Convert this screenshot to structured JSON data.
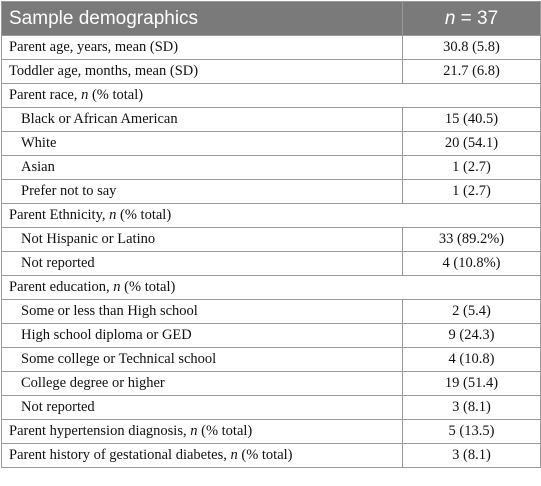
{
  "header": {
    "label": "Sample demographics",
    "n_symbol": "n",
    "n_rest": " = 37"
  },
  "rows": [
    {
      "kind": "stat",
      "label": "Parent age, years, mean (SD)",
      "value": "30.8 (5.8)"
    },
    {
      "kind": "stat",
      "label": "Toddler age, months, mean (SD)",
      "value": "21.7 (6.8)"
    },
    {
      "kind": "group",
      "pre": "Parent race, ",
      "n": "n",
      "post": " (% total)"
    },
    {
      "kind": "item",
      "label": "Black or African American",
      "value": "15 (40.5)"
    },
    {
      "kind": "item",
      "label": "White",
      "value": "20 (54.1)"
    },
    {
      "kind": "item",
      "label": "Asian",
      "value": "1 (2.7)"
    },
    {
      "kind": "item",
      "label": "Prefer not to say",
      "value": "1 (2.7)"
    },
    {
      "kind": "group",
      "pre": "Parent Ethnicity, ",
      "n": "n",
      "post": " (% total)"
    },
    {
      "kind": "item",
      "label": "Not Hispanic or Latino",
      "value": "33 (89.2%)"
    },
    {
      "kind": "item",
      "label": "Not reported",
      "value": "4 (10.8%)"
    },
    {
      "kind": "group",
      "pre": "Parent education, ",
      "n": "n",
      "post": " (% total)"
    },
    {
      "kind": "item",
      "label": "Some or less than High school",
      "value": "2 (5.4)"
    },
    {
      "kind": "item",
      "label": "High school diploma or GED",
      "value": "9 (24.3)"
    },
    {
      "kind": "item",
      "label": "Some college or Technical school",
      "value": "4 (10.8)"
    },
    {
      "kind": "item",
      "label": "College degree or higher",
      "value": "19 (51.4)"
    },
    {
      "kind": "item",
      "label": "Not reported",
      "value": "3 (8.1)"
    },
    {
      "kind": "statn",
      "pre": "Parent hypertension diagnosis, ",
      "n": "n",
      "post": " (% total)",
      "value": "5 (13.5)"
    },
    {
      "kind": "statn",
      "pre": "Parent history of gestational diabetes, ",
      "n": "n",
      "post": " (% total)",
      "value": "3 (8.1)"
    }
  ]
}
